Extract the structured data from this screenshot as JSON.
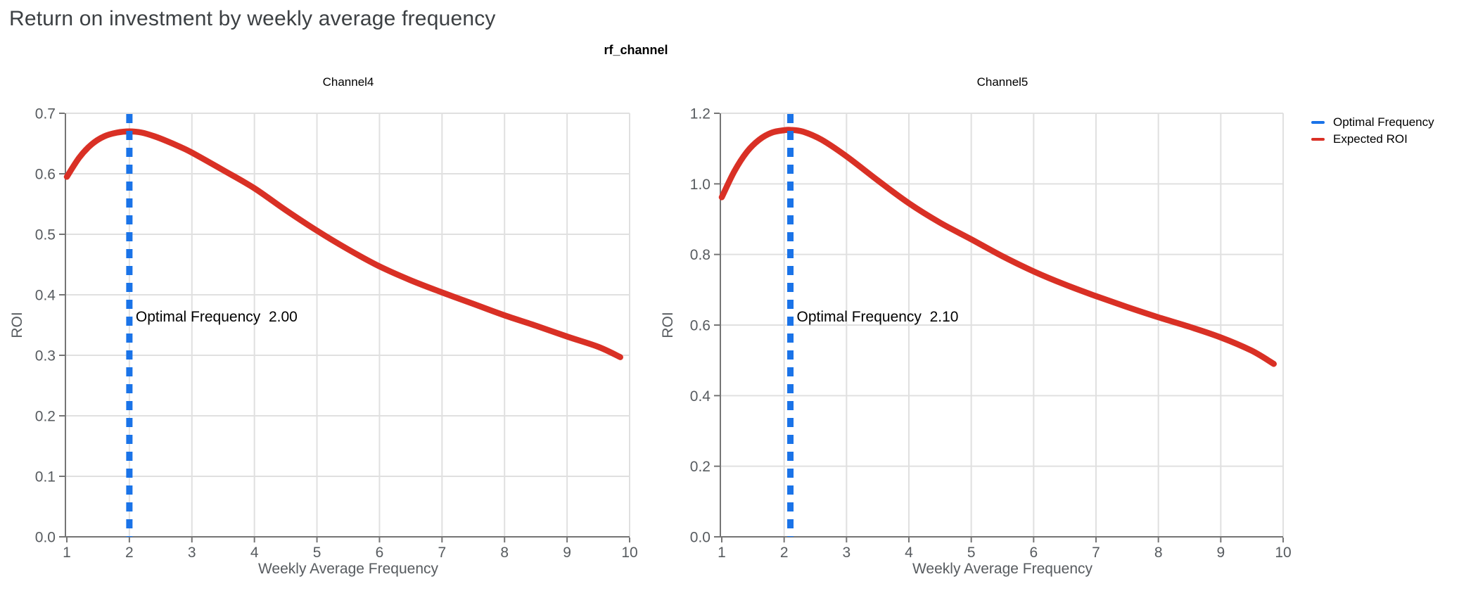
{
  "page": {
    "title": "Return on investment by weekly average frequency",
    "background": "#ffffff"
  },
  "figure": {
    "facet_field": "rf_channel",
    "colors": {
      "expected_roi": "#d93025",
      "optimal_frequency": "#1a73e8",
      "grid": "#e0e0e0",
      "axis": "#757575",
      "tick_text": "#575b5f",
      "title_text": "#3c4043",
      "annotation_text": "#000000"
    },
    "legend": {
      "position": "right",
      "items": [
        {
          "label": "Optimal Frequency",
          "color": "#1a73e8"
        },
        {
          "label": "Expected ROI",
          "color": "#d93025"
        }
      ]
    }
  },
  "chart_data": [
    {
      "type": "line",
      "title": "Channel4",
      "xlabel": "Weekly Average Frequency",
      "ylabel": "ROI",
      "xlim": [
        1,
        10
      ],
      "ylim": [
        0,
        0.7
      ],
      "xticks": [
        "1",
        "2",
        "3",
        "4",
        "5",
        "6",
        "7",
        "8",
        "9",
        "10"
      ],
      "yticks": [
        "0.0",
        "0.1",
        "0.2",
        "0.3",
        "0.4",
        "0.5",
        "0.6",
        "0.7"
      ],
      "grid": true,
      "optimal_frequency": 2.0,
      "annotation": "Optimal Frequency  2.00",
      "series": [
        {
          "name": "Expected ROI",
          "x": [
            1.0,
            1.2,
            1.4,
            1.6,
            1.8,
            2.0,
            2.2,
            2.4,
            2.6,
            2.8,
            3.0,
            3.5,
            4.0,
            4.5,
            5.0,
            5.5,
            6.0,
            6.5,
            7.0,
            7.5,
            8.0,
            8.5,
            9.0,
            9.5,
            9.85
          ],
          "y": [
            0.595,
            0.627,
            0.649,
            0.662,
            0.668,
            0.67,
            0.668,
            0.662,
            0.654,
            0.645,
            0.635,
            0.606,
            0.576,
            0.54,
            0.506,
            0.475,
            0.447,
            0.424,
            0.404,
            0.385,
            0.366,
            0.349,
            0.331,
            0.314,
            0.297
          ]
        },
        {
          "name": "Optimal Frequency",
          "value": 2.0
        }
      ]
    },
    {
      "type": "line",
      "title": "Channel5",
      "xlabel": "Weekly Average Frequency",
      "ylabel": "ROI",
      "xlim": [
        1,
        10
      ],
      "ylim": [
        0,
        1.2
      ],
      "xticks": [
        "1",
        "2",
        "3",
        "4",
        "5",
        "6",
        "7",
        "8",
        "9",
        "10"
      ],
      "yticks": [
        "0.0",
        "0.2",
        "0.4",
        "0.6",
        "0.8",
        "1.0",
        "1.2"
      ],
      "grid": true,
      "optimal_frequency": 2.1,
      "annotation": "Optimal Frequency  2.10",
      "series": [
        {
          "name": "Expected ROI",
          "x": [
            1.0,
            1.2,
            1.4,
            1.6,
            1.8,
            2.0,
            2.1,
            2.3,
            2.6,
            3.0,
            3.5,
            4.0,
            4.5,
            5.0,
            5.5,
            6.0,
            6.5,
            7.0,
            7.5,
            8.0,
            8.5,
            9.0,
            9.5,
            9.85
          ],
          "y": [
            0.962,
            1.035,
            1.09,
            1.125,
            1.145,
            1.152,
            1.153,
            1.148,
            1.125,
            1.078,
            1.01,
            0.945,
            0.89,
            0.843,
            0.795,
            0.752,
            0.715,
            0.682,
            0.651,
            0.622,
            0.595,
            0.565,
            0.527,
            0.49
          ]
        },
        {
          "name": "Optimal Frequency",
          "value": 2.1
        }
      ]
    }
  ]
}
